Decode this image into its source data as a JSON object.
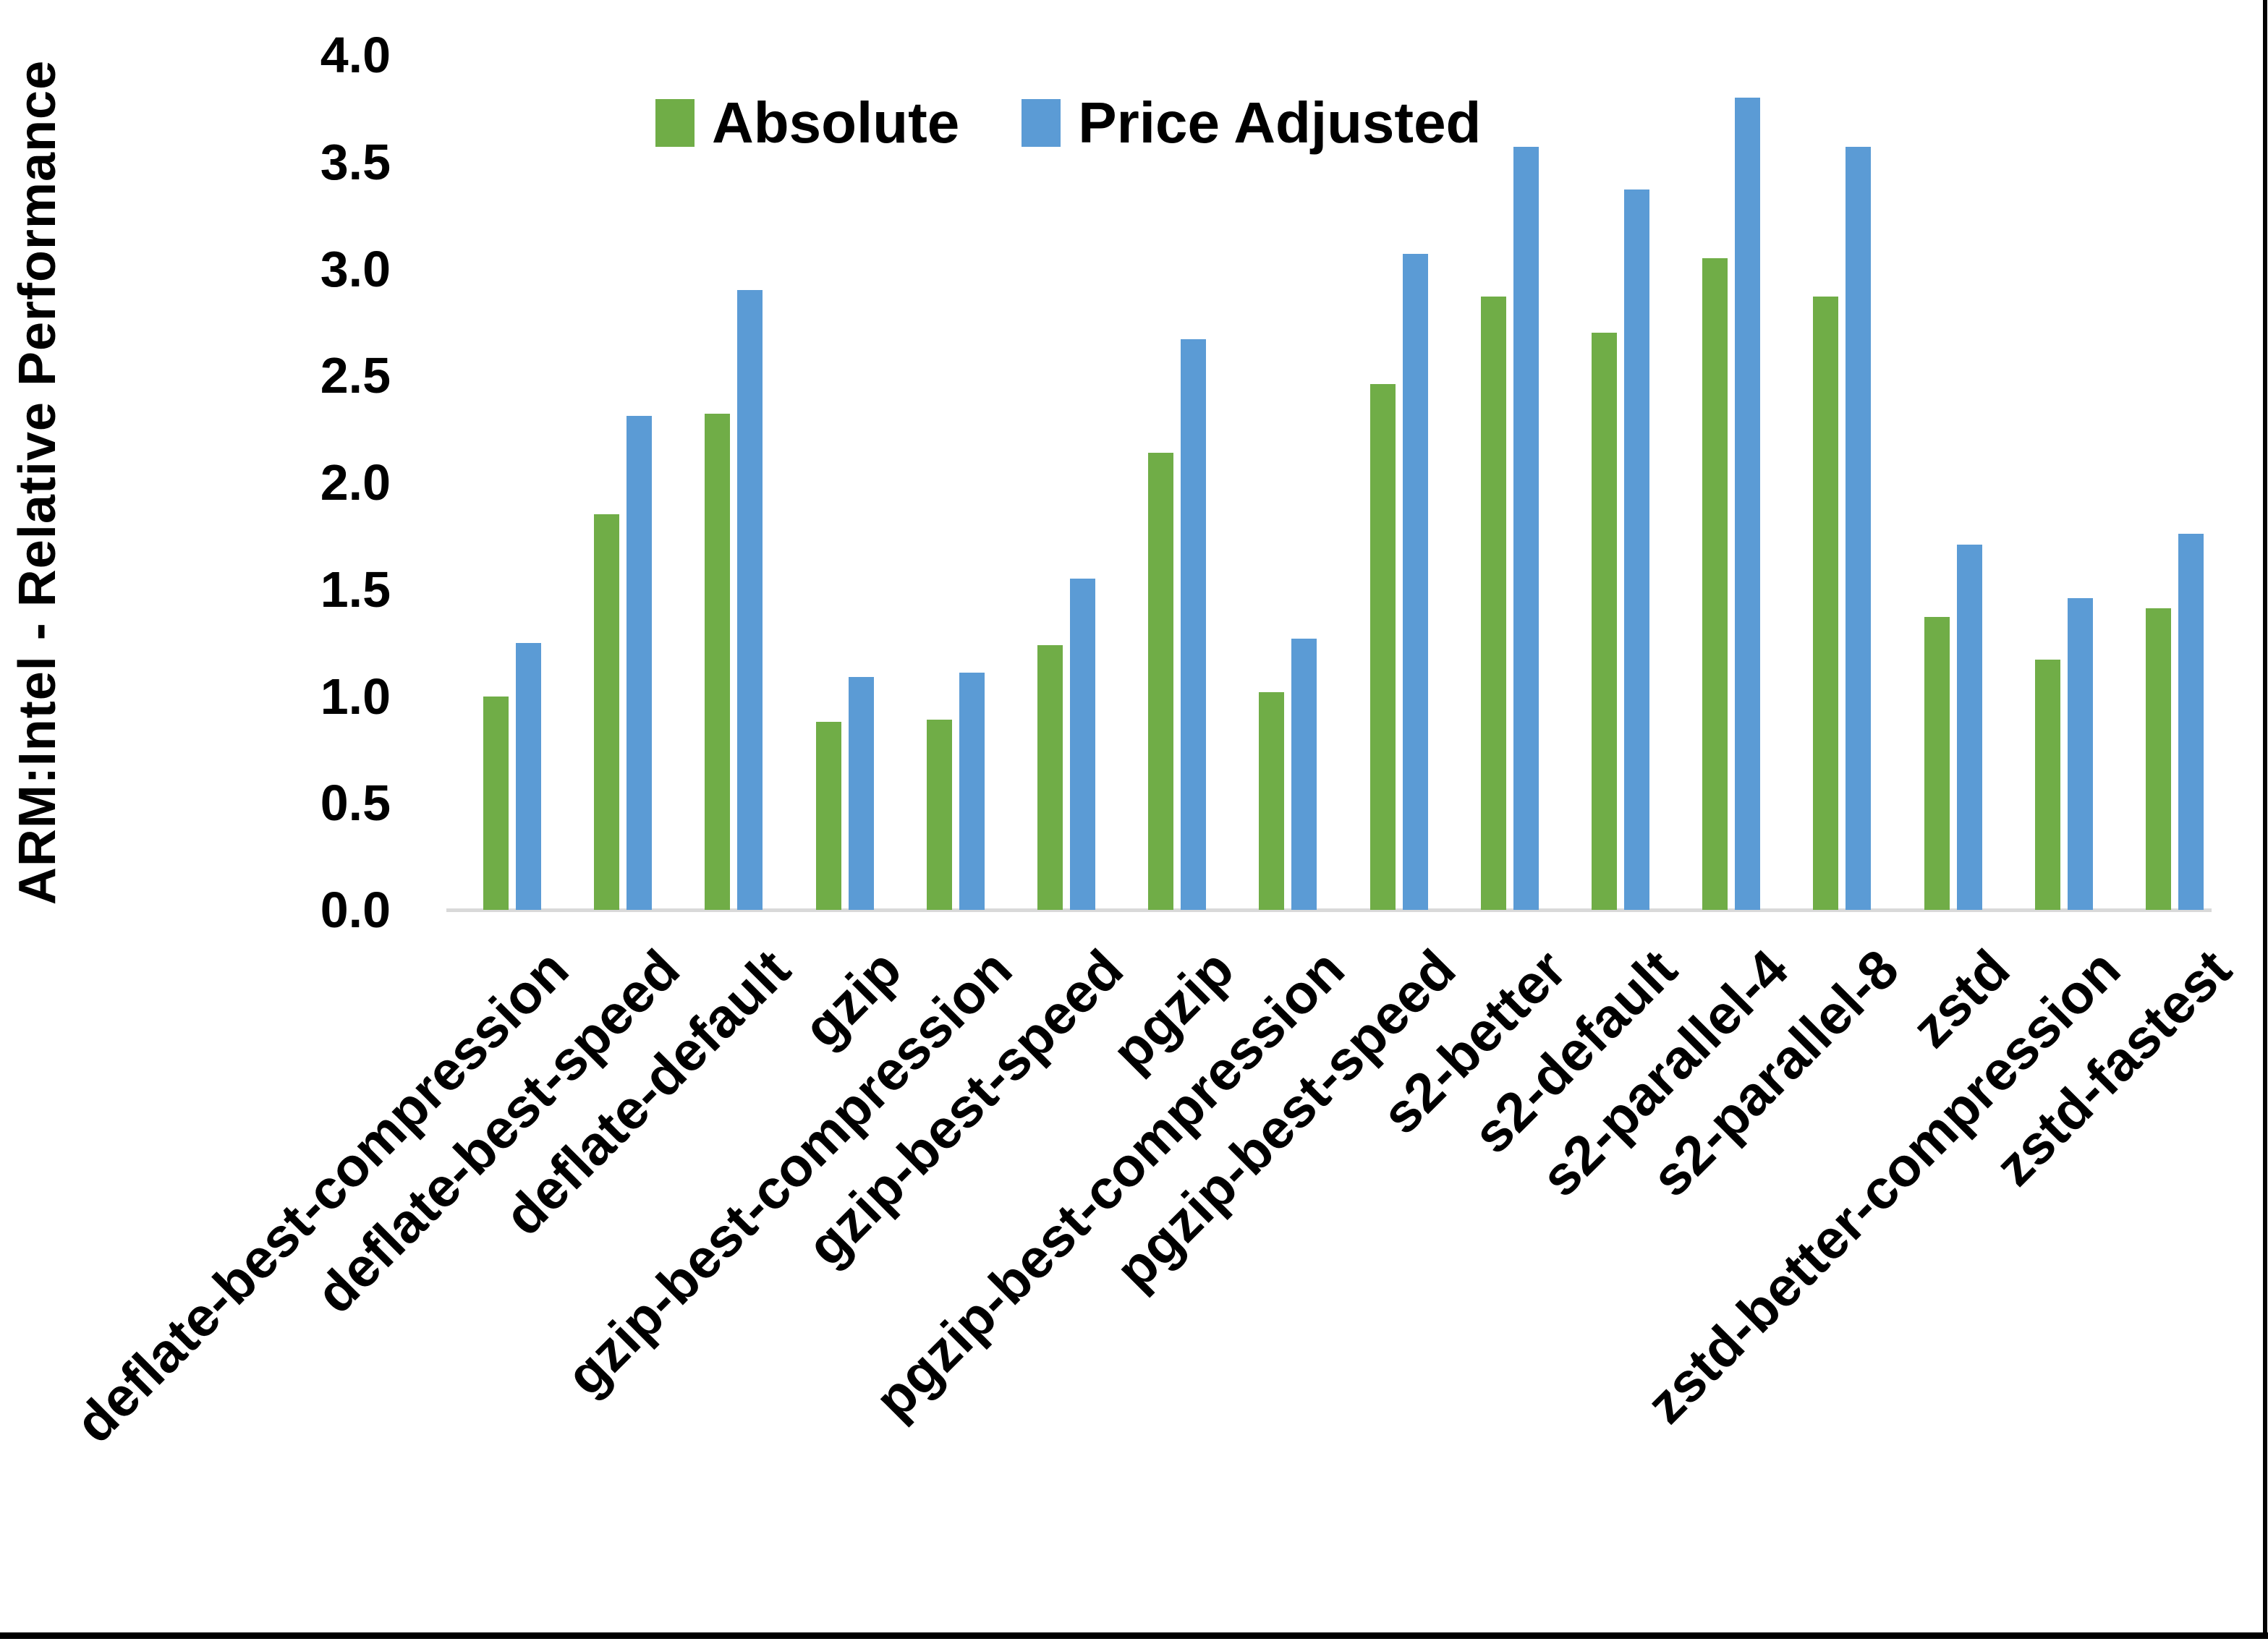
{
  "chart_data": {
    "type": "bar",
    "title": "",
    "xlabel": "",
    "ylabel": "ARM:Intel - Relative Performance",
    "ylim": [
      0.0,
      4.0
    ],
    "ytick_step": 0.5,
    "yticks": [
      "4.0",
      "3.5",
      "3.0",
      "2.5",
      "2.0",
      "1.5",
      "1.0",
      "0.5",
      "0.0"
    ],
    "grid": false,
    "legend_position": "top-center",
    "categories": [
      "deflate-best-compression",
      "deflate-best-speed",
      "deflate-default",
      "gzip",
      "gzip-best-compression",
      "gzip-best-speed",
      "pgzip",
      "pgzip-best-compression",
      "pgzip-best-speed",
      "s2-better",
      "s2-default",
      "s2-parallel-4",
      "s2-parallel-8",
      "zstd",
      "zstd-better-compression",
      "zstd-fastest"
    ],
    "series": [
      {
        "name": "Absolute",
        "color": "#70AD47",
        "values": [
          1.0,
          1.85,
          2.32,
          0.88,
          0.89,
          1.24,
          2.14,
          1.02,
          2.46,
          2.87,
          2.7,
          3.05,
          2.87,
          1.37,
          1.17,
          1.41
        ]
      },
      {
        "name": "Price Adjusted",
        "color": "#5B9BD5",
        "values": [
          1.25,
          2.31,
          2.9,
          1.09,
          1.11,
          1.55,
          2.67,
          1.27,
          3.07,
          3.57,
          3.37,
          3.8,
          3.57,
          1.71,
          1.46,
          1.76
        ]
      }
    ]
  },
  "colors": {
    "background": "#FFFFFF",
    "axis_line": "#D9D9D9",
    "text": "#000000",
    "frame_border": "#000000"
  }
}
